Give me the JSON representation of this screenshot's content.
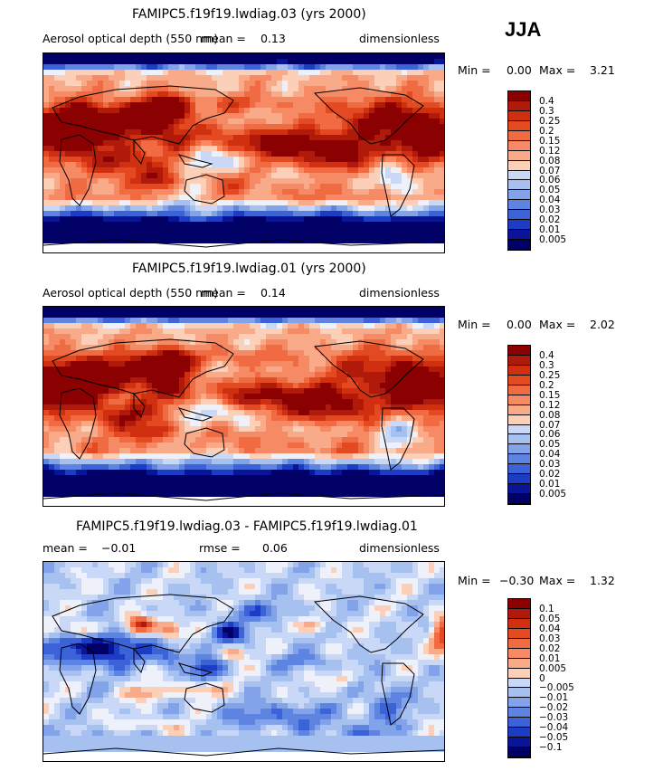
{
  "season": "JJA",
  "panels": [
    {
      "title": "FAMIPC5.f19f19.lwdiag.03 (yrs 2000)",
      "variable": "Aerosol optical depth (550 nm)",
      "stat_label": "mean =",
      "stat_value": "0.13",
      "units": "dimensionless",
      "min_label": "Min =",
      "min_value": "0.00",
      "max_label": "Max =",
      "max_value": "3.21",
      "levels": [
        "0.4",
        "0.3",
        "0.25",
        "0.2",
        "0.15",
        "0.12",
        "0.08",
        "0.07",
        "0.06",
        "0.05",
        "0.04",
        "0.03",
        "0.02",
        "0.01",
        "0.005"
      ]
    },
    {
      "title": "FAMIPC5.f19f19.lwdiag.01 (yrs 2000)",
      "variable": "Aerosol optical depth (550 nm)",
      "stat_label": "mean =",
      "stat_value": "0.14",
      "units": "dimensionless",
      "min_label": "Min =",
      "min_value": "0.00",
      "max_label": "Max =",
      "max_value": "2.02",
      "levels": [
        "0.4",
        "0.3",
        "0.25",
        "0.2",
        "0.15",
        "0.12",
        "0.08",
        "0.07",
        "0.06",
        "0.05",
        "0.04",
        "0.03",
        "0.02",
        "0.01",
        "0.005"
      ]
    },
    {
      "title": "FAMIPC5.f19f19.lwdiag.03 - FAMIPC5.f19f19.lwdiag.01",
      "mean_label": "mean =",
      "mean_value": "−0.01",
      "rmse_label": "rmse =",
      "rmse_value": "0.06",
      "units": "dimensionless",
      "min_label": "Min =",
      "min_value": "−0.30",
      "max_label": "Max =",
      "max_value": "1.32",
      "levels": [
        "0.1",
        "0.05",
        "0.04",
        "0.03",
        "0.02",
        "0.01",
        "0.005",
        "0",
        "−0.005",
        "−0.01",
        "−0.02",
        "−0.03",
        "−0.04",
        "−0.05",
        "−0.1"
      ]
    }
  ],
  "palette": [
    "#8b0000",
    "#b01a0a",
    "#d03010",
    "#e34a22",
    "#f06a42",
    "#f58a64",
    "#f9aa88",
    "#fcd0b8",
    "#eef0fa",
    "#c8d8f6",
    "#a6c0f0",
    "#82a2ea",
    "#5e84e2",
    "#3c62d8",
    "#1c3cc6",
    "#0a1496",
    "#000066"
  ],
  "chart_data": [
    {
      "type": "heatmap",
      "title": "FAMIPC5.f19f19.lwdiag.03 (yrs 2000)",
      "variable": "Aerosol optical depth (550 nm)",
      "units": "dimensionless",
      "season": "JJA",
      "mean": 0.13,
      "min": 0.0,
      "max": 3.21,
      "contour_levels": [
        0.005,
        0.01,
        0.02,
        0.03,
        0.04,
        0.05,
        0.06,
        0.07,
        0.08,
        0.12,
        0.15,
        0.2,
        0.25,
        0.3,
        0.4
      ]
    },
    {
      "type": "heatmap",
      "title": "FAMIPC5.f19f19.lwdiag.01 (yrs 2000)",
      "variable": "Aerosol optical depth (550 nm)",
      "units": "dimensionless",
      "season": "JJA",
      "mean": 0.14,
      "min": 0.0,
      "max": 2.02,
      "contour_levels": [
        0.005,
        0.01,
        0.02,
        0.03,
        0.04,
        0.05,
        0.06,
        0.07,
        0.08,
        0.12,
        0.15,
        0.2,
        0.25,
        0.3,
        0.4
      ]
    },
    {
      "type": "heatmap",
      "title": "FAMIPC5.f19f19.lwdiag.03 - FAMIPC5.f19f19.lwdiag.01",
      "units": "dimensionless",
      "season": "JJA",
      "mean": -0.01,
      "rmse": 0.06,
      "min": -0.3,
      "max": 1.32,
      "contour_levels": [
        -0.1,
        -0.05,
        -0.04,
        -0.03,
        -0.02,
        -0.01,
        -0.005,
        0,
        0.005,
        0.01,
        0.02,
        0.03,
        0.04,
        0.05,
        0.1
      ]
    }
  ]
}
